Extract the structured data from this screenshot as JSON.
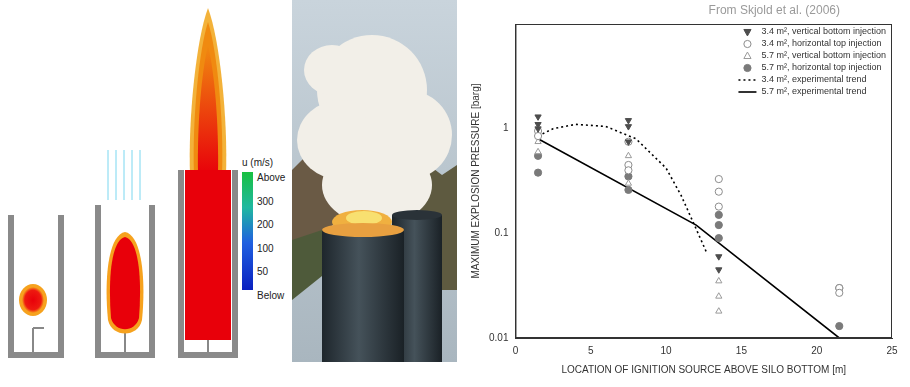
{
  "figure": {
    "colorbar": {
      "title": "u (m/s)",
      "above_label": "Above",
      "below_label": "Below",
      "ticks": [
        300,
        200,
        100,
        50
      ]
    }
  },
  "chart_data": {
    "type": "scatter",
    "annotations": [
      "From Skjold et al. (2006)"
    ],
    "x_label": "LOCATION OF IGNITION SOURCE ABOVE SILO BOTTOM [m]",
    "y_label": "MAXIMUM EXPLOSION PRESSURE [barg]",
    "xlim": [
      0,
      25
    ],
    "xticks": [
      0,
      5,
      10,
      15,
      20,
      25
    ],
    "ylim": [
      0.01,
      10
    ],
    "yticks": [
      0.01,
      0.1,
      1
    ],
    "log": "y",
    "grid": false,
    "legend": "top-right",
    "series": [
      {
        "name": "3.4 m², vertical bottom injection",
        "color": "#4d4d4d",
        "marker": "triangle-down-filled",
        "x": [
          1.5,
          1.5,
          1.5,
          7.5,
          7.5,
          7.5,
          13.5,
          13.5
        ],
        "values": [
          1.3,
          1.1,
          1.0,
          1.2,
          1.05,
          0.75,
          0.06,
          0.045
        ]
      },
      {
        "name": "3.4 m², horizontal top injection",
        "color": "#8c8c8c",
        "marker": "circle-open",
        "x": [
          1.5,
          1.5,
          7.5,
          7.5,
          7.5,
          13.5,
          13.5,
          13.5,
          21.5,
          21.5
        ],
        "values": [
          0.95,
          0.85,
          0.75,
          0.45,
          0.4,
          0.33,
          0.25,
          0.18,
          0.03,
          0.027
        ]
      },
      {
        "name": "5.7 m², vertical bottom injection",
        "color": "#9a9a9a",
        "marker": "triangle-open",
        "x": [
          1.5,
          1.5,
          7.5,
          7.5,
          13.5,
          13.5,
          13.5
        ],
        "values": [
          0.75,
          0.6,
          0.55,
          0.3,
          0.035,
          0.025,
          0.018
        ]
      },
      {
        "name": "5.7 m², horizontal top injection",
        "color": "#7a7a7a",
        "marker": "circle-filled",
        "x": [
          1.5,
          1.5,
          7.5,
          7.5,
          13.5,
          13.5,
          13.5,
          21.5,
          21.5
        ],
        "values": [
          0.55,
          0.38,
          0.35,
          0.26,
          0.15,
          0.12,
          0.09,
          0.03,
          0.013
        ]
      },
      {
        "name": "3.4 m², experimental trend",
        "type": "line",
        "color": "#000000",
        "line_style": "dotted",
        "x": [
          1.5,
          2.5,
          4,
          6,
          8,
          10,
          11,
          12,
          12.7
        ],
        "values": [
          0.85,
          1.0,
          1.1,
          1.05,
          0.8,
          0.42,
          0.23,
          0.11,
          0.065
        ]
      },
      {
        "name": "5.7 m², experimental trend",
        "type": "line",
        "color": "#000000",
        "line_style": "solid",
        "x": [
          1.5,
          12,
          21.5
        ],
        "values": [
          0.8,
          0.12,
          0.01
        ]
      }
    ]
  }
}
